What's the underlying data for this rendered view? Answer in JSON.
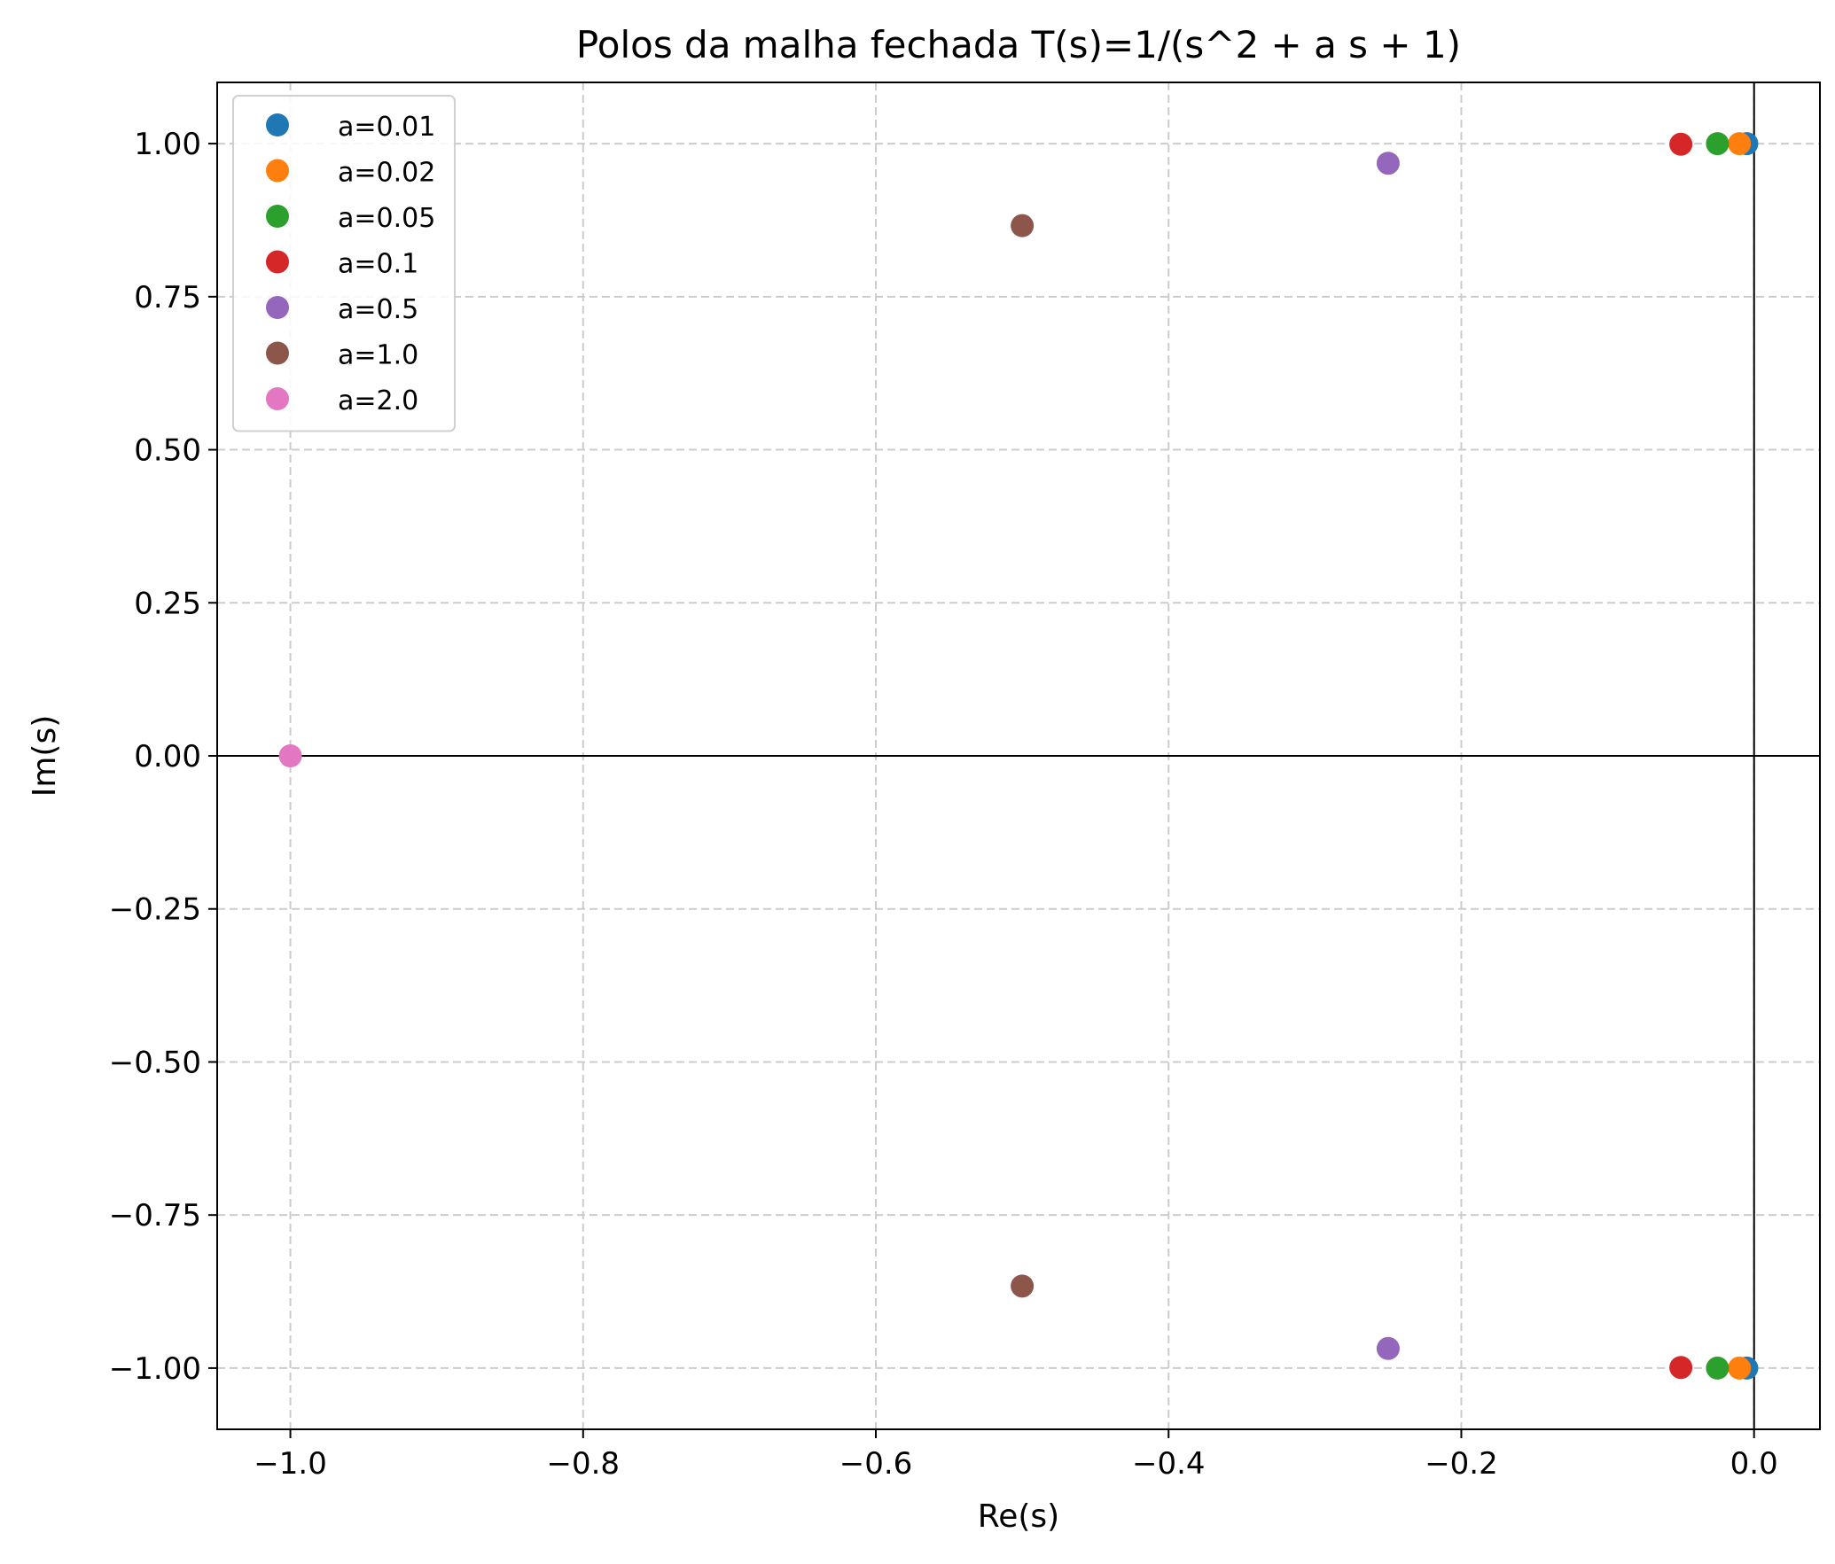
{
  "chart_data": {
    "type": "scatter",
    "title": "Polos da malha fechada T(s)=1/(s^2 + a s + 1)",
    "xlabel": "Re(s)",
    "ylabel": "Im(s)",
    "xlim": [
      -1.05,
      0.045
    ],
    "ylim": [
      -1.1,
      1.1
    ],
    "x_ticks": [
      -1.0,
      -0.8,
      -0.6,
      -0.4,
      -0.2,
      0.0
    ],
    "x_tick_labels": [
      "−1.0",
      "−0.8",
      "−0.6",
      "−0.4",
      "−0.2",
      "0.0"
    ],
    "y_ticks": [
      1.0,
      0.75,
      0.5,
      0.25,
      0.0,
      -0.25,
      -0.5,
      -0.75,
      -1.0
    ],
    "y_tick_labels": [
      "1.00",
      "0.75",
      "0.50",
      "0.25",
      "0.00",
      "−0.25",
      "−0.50",
      "−0.75",
      "−1.00"
    ],
    "grid": true,
    "reference_lines": {
      "x": 0.0,
      "y": 0.0
    },
    "legend_position": "top-left",
    "series": [
      {
        "name": "a=0.01",
        "color": "#1f77b4",
        "points": [
          [
            -0.005,
            1.0
          ],
          [
            -0.005,
            -1.0
          ]
        ]
      },
      {
        "name": "a=0.02",
        "color": "#ff7f0e",
        "points": [
          [
            -0.01,
            1.0
          ],
          [
            -0.01,
            -1.0
          ]
        ]
      },
      {
        "name": "a=0.05",
        "color": "#2ca02c",
        "points": [
          [
            -0.025,
            1.0
          ],
          [
            -0.025,
            -1.0
          ]
        ]
      },
      {
        "name": "a=0.1",
        "color": "#d62728",
        "points": [
          [
            -0.05,
            0.999
          ],
          [
            -0.05,
            -0.999
          ]
        ]
      },
      {
        "name": "a=0.5",
        "color": "#9467bd",
        "points": [
          [
            -0.25,
            0.968
          ],
          [
            -0.25,
            -0.968
          ]
        ]
      },
      {
        "name": "a=1.0",
        "color": "#8c564b",
        "points": [
          [
            -0.5,
            0.866
          ],
          [
            -0.5,
            -0.866
          ]
        ]
      },
      {
        "name": "a=2.0",
        "color": "#e377c2",
        "points": [
          [
            -1.0,
            0.0
          ]
        ]
      }
    ]
  }
}
